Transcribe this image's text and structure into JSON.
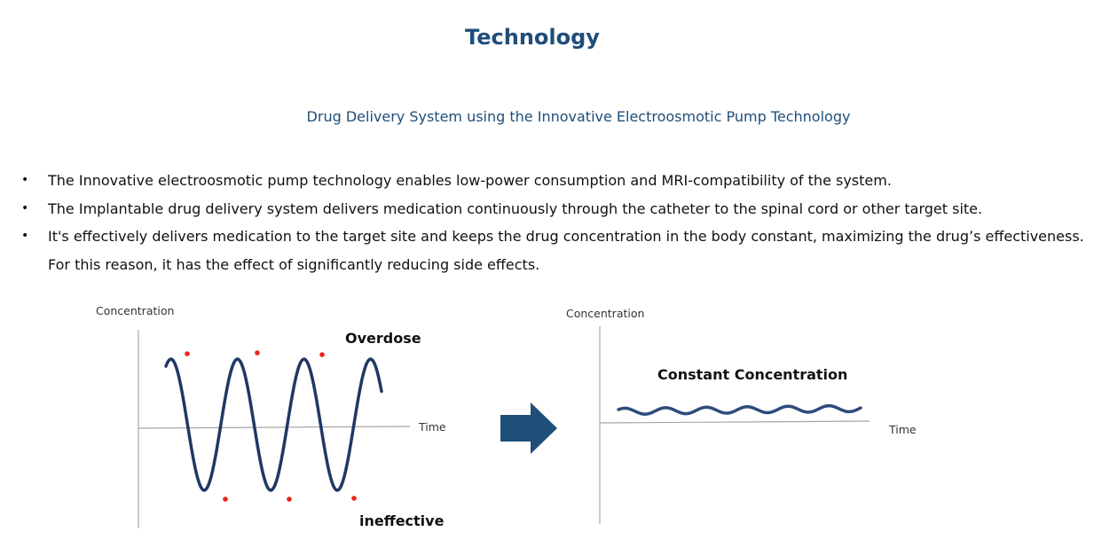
{
  "page": {
    "title": "Technology",
    "subtitle": "Drug Delivery System using the Innovative Electroosmotic Pump Technology"
  },
  "bullets": [
    "The Innovative electroosmotic pump technology enables low-power consumption and MRI-compatibility of the system.",
    "The Implantable drug delivery system delivers medication continuously through the catheter to the spinal cord or other target site.",
    "It's effectively delivers medication to the target site and keeps the drug concentration in the body constant, maximizing the drug’s effectiveness. For this reason, it has the effect of significantly reducing side effects."
  ],
  "colors": {
    "title": "#1f4e79",
    "curve": "#1f3864",
    "marker": "#e8241c",
    "arrow": "#1f4e79"
  },
  "diagram": {
    "left": {
      "y_label": "Concentration",
      "x_label": "Time",
      "top_annotation": "Overdose",
      "bottom_annotation": "ineffective"
    },
    "right": {
      "y_label": "Concentration",
      "x_label": "Time",
      "annotation": "Constant Concentration"
    },
    "arrow_icon": "right-arrow-icon"
  }
}
